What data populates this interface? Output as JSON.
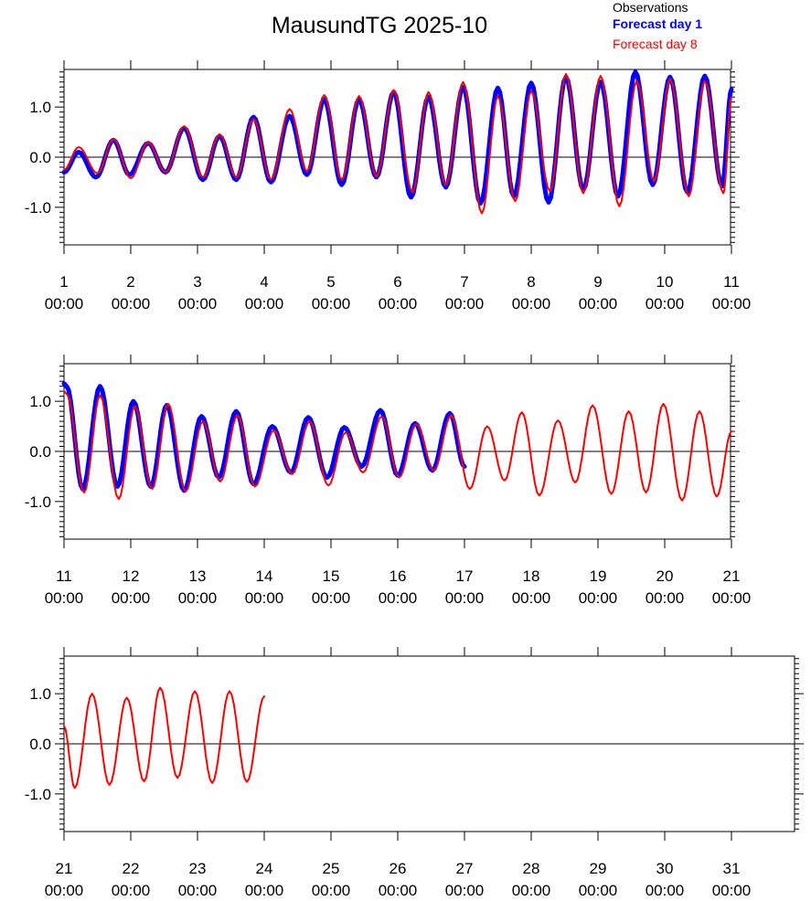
{
  "chart_data": {
    "type": "line",
    "title": "MausundTG 2025-10",
    "legend": {
      "placement": "top-right",
      "entries": [
        {
          "name": "Observations",
          "color": "#000000",
          "bold": false
        },
        {
          "name": "Forecast day 1",
          "color": "#0000ff",
          "bold": true
        },
        {
          "name": "Forecast day 8",
          "color": "#ff0000",
          "bold": false
        }
      ]
    },
    "ylim": [
      -1.75,
      1.75
    ],
    "yticks": [
      -1.0,
      0.0,
      1.0
    ],
    "ytick_labels": [
      "-1.0",
      "0.0",
      "1.0"
    ],
    "zero_line": true,
    "series_colors": {
      "forecast_day_1": "#0000ff",
      "forecast_day_8": "#ff0000"
    },
    "panels": [
      {
        "xlim": [
          1,
          11
        ],
        "xtick_labels": [
          [
            "1",
            "00:00"
          ],
          [
            "2",
            "00:00"
          ],
          [
            "3",
            "00:00"
          ],
          [
            "4",
            "00:00"
          ],
          [
            "5",
            "00:00"
          ],
          [
            "6",
            "00:00"
          ],
          [
            "7",
            "00:00"
          ],
          [
            "8",
            "00:00"
          ],
          [
            "9",
            "00:00"
          ],
          [
            "10",
            "00:00"
          ],
          [
            "11",
            "00:00"
          ]
        ],
        "forecast_day_1": {
          "x_start": 1.0,
          "x_end": 11.0,
          "peaks": [
            [
              1.0,
              -0.3
            ],
            [
              1.22,
              0.1
            ],
            [
              1.48,
              -0.4
            ],
            [
              1.74,
              0.34
            ],
            [
              1.98,
              -0.35
            ],
            [
              2.26,
              0.28
            ],
            [
              2.52,
              -0.3
            ],
            [
              2.8,
              0.58
            ],
            [
              3.08,
              -0.45
            ],
            [
              3.33,
              0.42
            ],
            [
              3.58,
              -0.45
            ],
            [
              3.84,
              0.8
            ],
            [
              4.1,
              -0.5
            ],
            [
              4.38,
              0.82
            ],
            [
              4.64,
              -0.35
            ],
            [
              4.9,
              1.15
            ],
            [
              5.16,
              -0.55
            ],
            [
              5.42,
              1.15
            ],
            [
              5.68,
              -0.4
            ],
            [
              5.94,
              1.3
            ],
            [
              6.2,
              -0.8
            ],
            [
              6.46,
              1.2
            ],
            [
              6.72,
              -0.6
            ],
            [
              6.98,
              1.4
            ],
            [
              7.24,
              -0.92
            ],
            [
              7.5,
              1.38
            ],
            [
              7.74,
              -0.78
            ],
            [
              8.0,
              1.48
            ],
            [
              8.26,
              -0.9
            ],
            [
              8.52,
              1.6
            ],
            [
              8.78,
              -0.65
            ],
            [
              9.04,
              1.5
            ],
            [
              9.3,
              -0.78
            ],
            [
              9.56,
              1.7
            ],
            [
              9.82,
              -0.55
            ],
            [
              10.08,
              1.6
            ],
            [
              10.34,
              -0.7
            ],
            [
              10.6,
              1.62
            ],
            [
              10.86,
              -0.58
            ],
            [
              11.0,
              1.35
            ]
          ]
        },
        "forecast_day_8": {
          "x_start": 1.0,
          "x_end": 11.0,
          "peaks": [
            [
              1.0,
              -0.25
            ],
            [
              1.22,
              0.2
            ],
            [
              1.5,
              -0.32
            ],
            [
              1.74,
              0.36
            ],
            [
              2.0,
              -0.42
            ],
            [
              2.26,
              0.3
            ],
            [
              2.52,
              -0.3
            ],
            [
              2.8,
              0.62
            ],
            [
              3.08,
              -0.4
            ],
            [
              3.33,
              0.46
            ],
            [
              3.58,
              -0.4
            ],
            [
              3.84,
              0.76
            ],
            [
              4.1,
              -0.45
            ],
            [
              4.38,
              0.96
            ],
            [
              4.64,
              -0.28
            ],
            [
              4.9,
              1.24
            ],
            [
              5.16,
              -0.45
            ],
            [
              5.42,
              1.22
            ],
            [
              5.68,
              -0.38
            ],
            [
              5.94,
              1.34
            ],
            [
              6.22,
              -0.7
            ],
            [
              6.46,
              1.3
            ],
            [
              6.72,
              -0.55
            ],
            [
              6.98,
              1.5
            ],
            [
              7.26,
              -1.12
            ],
            [
              7.5,
              1.22
            ],
            [
              7.76,
              -0.88
            ],
            [
              8.0,
              1.32
            ],
            [
              8.28,
              -0.68
            ],
            [
              8.52,
              1.66
            ],
            [
              8.78,
              -0.72
            ],
            [
              9.04,
              1.62
            ],
            [
              9.32,
              -0.98
            ],
            [
              9.58,
              1.52
            ],
            [
              9.84,
              -0.48
            ],
            [
              10.08,
              1.56
            ],
            [
              10.36,
              -0.78
            ],
            [
              10.6,
              1.52
            ],
            [
              10.88,
              -0.72
            ],
            [
              11.0,
              1.2
            ]
          ]
        }
      },
      {
        "xlim": [
          11,
          21
        ],
        "xtick_labels": [
          [
            "11",
            "00:00"
          ],
          [
            "12",
            "00:00"
          ],
          [
            "13",
            "00:00"
          ],
          [
            "14",
            "00:00"
          ],
          [
            "15",
            "00:00"
          ],
          [
            "16",
            "00:00"
          ],
          [
            "17",
            "00:00"
          ],
          [
            "18",
            "00:00"
          ],
          [
            "19",
            "00:00"
          ],
          [
            "20",
            "00:00"
          ],
          [
            "21",
            "00:00"
          ]
        ],
        "forecast_day_1": {
          "x_start": 11.0,
          "x_end": 17.0,
          "peaks": [
            [
              11.0,
              1.35
            ],
            [
              11.04,
              1.3
            ],
            [
              11.28,
              -0.75
            ],
            [
              11.54,
              1.3
            ],
            [
              11.8,
              -0.7
            ],
            [
              12.04,
              1.0
            ],
            [
              12.3,
              -0.7
            ],
            [
              12.54,
              0.92
            ],
            [
              12.8,
              -0.78
            ],
            [
              13.06,
              0.7
            ],
            [
              13.32,
              -0.52
            ],
            [
              13.58,
              0.8
            ],
            [
              13.84,
              -0.65
            ],
            [
              14.12,
              0.5
            ],
            [
              14.4,
              -0.42
            ],
            [
              14.66,
              0.68
            ],
            [
              14.94,
              -0.52
            ],
            [
              15.2,
              0.48
            ],
            [
              15.46,
              -0.3
            ],
            [
              15.74,
              0.82
            ],
            [
              16.0,
              -0.48
            ],
            [
              16.26,
              0.56
            ],
            [
              16.52,
              -0.38
            ],
            [
              16.78,
              0.76
            ],
            [
              17.0,
              -0.3
            ]
          ]
        },
        "forecast_day_8": {
          "x_start": 11.0,
          "x_end": 21.0,
          "peaks": [
            [
              11.0,
              1.2
            ],
            [
              11.04,
              1.15
            ],
            [
              11.3,
              -0.82
            ],
            [
              11.54,
              1.12
            ],
            [
              11.82,
              -0.95
            ],
            [
              12.06,
              0.9
            ],
            [
              12.32,
              -0.75
            ],
            [
              12.56,
              0.95
            ],
            [
              12.82,
              -0.8
            ],
            [
              13.08,
              0.6
            ],
            [
              13.34,
              -0.6
            ],
            [
              13.6,
              0.72
            ],
            [
              13.86,
              -0.7
            ],
            [
              14.14,
              0.42
            ],
            [
              14.42,
              -0.45
            ],
            [
              14.68,
              0.6
            ],
            [
              14.96,
              -0.68
            ],
            [
              15.22,
              0.38
            ],
            [
              15.48,
              -0.42
            ],
            [
              15.76,
              0.7
            ],
            [
              16.02,
              -0.52
            ],
            [
              16.28,
              0.55
            ],
            [
              16.54,
              -0.38
            ],
            [
              16.8,
              0.72
            ],
            [
              17.08,
              -0.75
            ],
            [
              17.34,
              0.5
            ],
            [
              17.6,
              -0.58
            ],
            [
              17.86,
              0.78
            ],
            [
              18.12,
              -0.88
            ],
            [
              18.4,
              0.62
            ],
            [
              18.66,
              -0.62
            ],
            [
              18.92,
              0.92
            ],
            [
              19.2,
              -0.85
            ],
            [
              19.46,
              0.8
            ],
            [
              19.72,
              -0.82
            ],
            [
              19.98,
              0.95
            ],
            [
              20.26,
              -0.98
            ],
            [
              20.52,
              0.8
            ],
            [
              20.78,
              -0.9
            ],
            [
              21.0,
              0.4
            ]
          ]
        }
      },
      {
        "xlim": [
          21,
          31
        ],
        "xtick_labels": [
          [
            "21",
            "00:00"
          ],
          [
            "22",
            "00:00"
          ],
          [
            "23",
            "00:00"
          ],
          [
            "24",
            "00:00"
          ],
          [
            "25",
            "00:00"
          ],
          [
            "26",
            "00:00"
          ],
          [
            "27",
            "00:00"
          ],
          [
            "28",
            "00:00"
          ],
          [
            "29",
            "00:00"
          ],
          [
            "30",
            "00:00"
          ],
          [
            "31",
            "00:00"
          ]
        ],
        "forecast_day_8": {
          "x_start": 21.0,
          "x_end": 24.0,
          "peaks": [
            [
              21.0,
              0.35
            ],
            [
              21.16,
              -0.88
            ],
            [
              21.42,
              1.0
            ],
            [
              21.68,
              -0.82
            ],
            [
              21.94,
              0.92
            ],
            [
              22.2,
              -0.75
            ],
            [
              22.44,
              1.12
            ],
            [
              22.7,
              -0.68
            ],
            [
              22.96,
              1.05
            ],
            [
              23.22,
              -0.78
            ],
            [
              23.48,
              1.05
            ],
            [
              23.74,
              -0.76
            ],
            [
              24.0,
              0.95
            ]
          ]
        }
      }
    ]
  }
}
